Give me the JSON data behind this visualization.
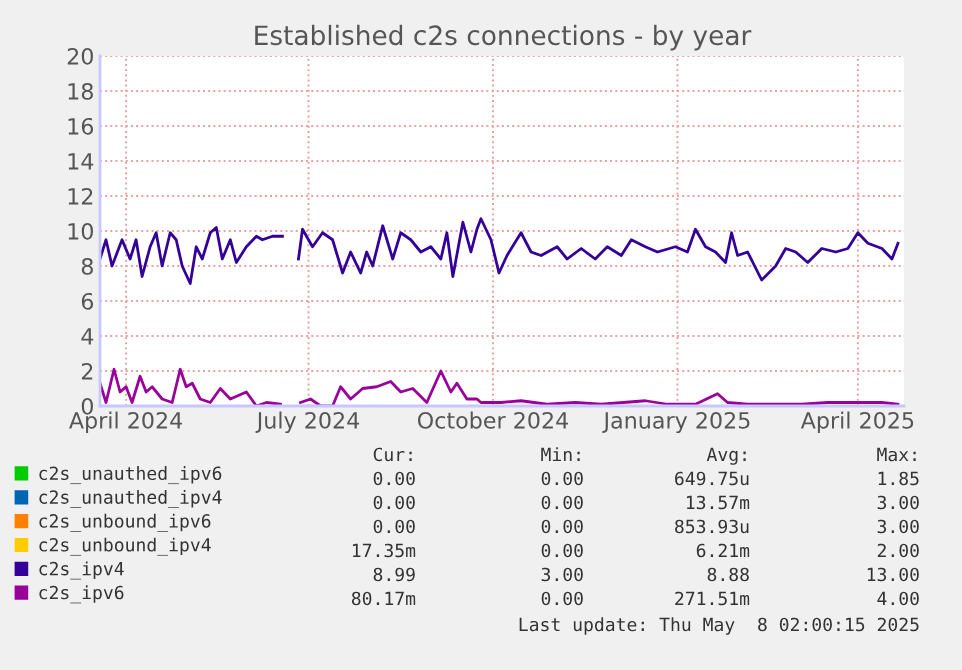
{
  "chart_data": {
    "type": "line",
    "title": "Established c2s connections - by year",
    "xlim": [
      "2024-03-19",
      "2025-04-24"
    ],
    "xticks": [
      {
        "value": "2024-04-01",
        "label": "April 2024"
      },
      {
        "value": "2024-07-01",
        "label": "July 2024"
      },
      {
        "value": "2024-10-01",
        "label": "October 2024"
      },
      {
        "value": "2025-01-01",
        "label": "January 2025"
      },
      {
        "value": "2025-04-01",
        "label": "April 2025"
      }
    ],
    "ylim": [
      0,
      20
    ],
    "yticks": [
      0,
      2,
      4,
      6,
      8,
      10,
      12,
      14,
      16,
      18,
      20
    ],
    "grid": true,
    "legend": "bottom",
    "line_style": "solid",
    "series": [
      {
        "name": "c2s_unauthed_ipv6",
        "color": "#00cc00"
      },
      {
        "name": "c2s_unauthed_ipv4",
        "color": "#0066b3"
      },
      {
        "name": "c2s_unbound_ipv6",
        "color": "#ff8000"
      },
      {
        "name": "c2s_unbound_ipv4",
        "color": "#ffcc00"
      },
      {
        "name": "c2s_ipv4",
        "color": "#330099",
        "x": [
          "2024-03-19",
          "2024-03-22",
          "2024-03-25",
          "2024-03-30",
          "2024-04-03",
          "2024-04-06",
          "2024-04-09",
          "2024-04-13",
          "2024-04-16",
          "2024-04-19",
          "2024-04-23",
          "2024-04-26",
          "2024-04-29",
          "2024-05-03",
          "2024-05-06",
          "2024-05-09",
          "2024-05-13",
          "2024-05-16",
          "2024-05-19",
          "2024-05-23",
          "2024-05-26",
          "2024-05-31",
          "2024-06-05",
          "2024-06-08",
          "2024-06-13",
          "2024-06-18",
          "2024-06-22",
          "2024-06-26",
          "2024-06-28",
          "2024-07-03",
          "2024-07-08",
          "2024-07-13",
          "2024-07-18",
          "2024-07-22",
          "2024-07-27",
          "2024-07-30",
          "2024-08-02",
          "2024-08-07",
          "2024-08-12",
          "2024-08-16",
          "2024-08-21",
          "2024-08-26",
          "2024-08-31",
          "2024-09-05",
          "2024-09-08",
          "2024-09-11",
          "2024-09-16",
          "2024-09-20",
          "2024-09-23",
          "2024-09-25",
          "2024-09-30",
          "2024-10-04",
          "2024-10-08",
          "2024-10-15",
          "2024-10-20",
          "2024-10-25",
          "2024-11-02",
          "2024-11-07",
          "2024-11-14",
          "2024-11-21",
          "2024-11-27",
          "2024-12-04",
          "2024-12-09",
          "2024-12-16",
          "2024-12-22",
          "2024-12-31",
          "2025-01-06",
          "2025-01-10",
          "2025-01-15",
          "2025-01-20",
          "2025-01-25",
          "2025-01-28",
          "2025-01-31",
          "2025-02-05",
          "2025-02-12",
          "2025-02-19",
          "2025-02-24",
          "2025-03-01",
          "2025-03-07",
          "2025-03-14",
          "2025-03-21",
          "2025-03-27",
          "2025-04-01",
          "2025-04-06",
          "2025-04-13",
          "2025-04-18",
          "2025-04-21"
        ],
        "values": [
          8.4,
          9.5,
          8.0,
          9.5,
          8.4,
          9.5,
          7.4,
          9.1,
          9.9,
          8.0,
          9.9,
          9.5,
          8.0,
          7.0,
          9.1,
          8.4,
          9.9,
          10.2,
          8.4,
          9.5,
          8.2,
          9.1,
          9.7,
          9.5,
          9.7,
          9.7,
          null,
          8.4,
          10.1,
          9.1,
          9.9,
          9.5,
          7.6,
          8.8,
          7.6,
          8.8,
          8.0,
          10.3,
          8.4,
          9.9,
          9.5,
          8.8,
          9.1,
          8.4,
          9.9,
          7.4,
          10.5,
          8.8,
          10.1,
          10.7,
          9.5,
          7.6,
          8.6,
          9.9,
          8.8,
          8.6,
          9.1,
          8.4,
          9.0,
          8.4,
          9.1,
          8.6,
          9.5,
          9.1,
          8.8,
          9.1,
          8.8,
          10.1,
          9.1,
          8.8,
          8.2,
          9.9,
          8.6,
          8.8,
          7.2,
          8.0,
          9.0,
          8.8,
          8.2,
          9.0,
          8.8,
          9.0,
          9.9,
          9.3,
          9.0,
          8.4,
          9.3
        ]
      },
      {
        "name": "c2s_ipv6",
        "color": "#990099",
        "x": [
          "2024-03-19",
          "2024-03-22",
          "2024-03-26",
          "2024-03-29",
          "2024-04-01",
          "2024-04-04",
          "2024-04-08",
          "2024-04-11",
          "2024-04-14",
          "2024-04-19",
          "2024-04-24",
          "2024-04-28",
          "2024-05-01",
          "2024-05-04",
          "2024-05-08",
          "2024-05-13",
          "2024-05-18",
          "2024-05-23",
          "2024-05-31",
          "2024-06-05",
          "2024-06-10",
          "2024-06-17",
          "2024-06-22",
          "2024-06-27",
          "2024-07-02",
          "2024-07-07",
          "2024-07-13",
          "2024-07-17",
          "2024-07-22",
          "2024-07-28",
          "2024-08-04",
          "2024-08-11",
          "2024-08-16",
          "2024-08-22",
          "2024-08-29",
          "2024-09-05",
          "2024-09-10",
          "2024-09-13",
          "2024-09-18",
          "2024-09-23",
          "2024-09-25",
          "2024-10-05",
          "2024-10-15",
          "2024-10-28",
          "2024-11-11",
          "2024-11-24",
          "2024-12-16",
          "2024-12-27",
          "2025-01-10",
          "2025-01-21",
          "2025-01-26",
          "2025-02-05",
          "2025-02-19",
          "2025-03-04",
          "2025-03-17",
          "2025-03-31",
          "2025-04-13",
          "2025-04-21"
        ],
        "values": [
          1.3,
          0.2,
          2.1,
          0.8,
          1.1,
          0.2,
          1.7,
          0.8,
          1.1,
          0.4,
          0.2,
          2.1,
          1.1,
          1.3,
          0.4,
          0.2,
          1.0,
          0.4,
          0.8,
          0,
          0.2,
          0.1,
          null,
          0.2,
          0.4,
          0,
          0,
          1.1,
          0.4,
          1.0,
          1.1,
          1.4,
          0.8,
          1.0,
          0.2,
          2.0,
          0.8,
          1.3,
          0.4,
          0.4,
          0.2,
          0.2,
          0.3,
          0.1,
          0.2,
          0.1,
          0.3,
          0.1,
          0.1,
          0.7,
          0.2,
          0.1,
          0.1,
          0.1,
          0.2,
          0.2,
          0.2,
          0.1
        ]
      }
    ],
    "annotations": [
      "Cur:",
      "Min:",
      "Avg:",
      "Max:",
      "0.00",
      "0.00",
      "649.75u",
      "1.85",
      "0.00",
      "0.00",
      "13.57m",
      "3.00",
      "0.00",
      "0.00",
      "853.93u",
      "3.00",
      "17.35m",
      "0.00",
      "6.21m",
      "2.00",
      "8.99",
      "3.00",
      "8.88",
      "13.00",
      "80.17m",
      "0.00",
      "271.51m",
      "4.00",
      "Last update: Thu May  8 02:00:15 2025"
    ]
  }
}
